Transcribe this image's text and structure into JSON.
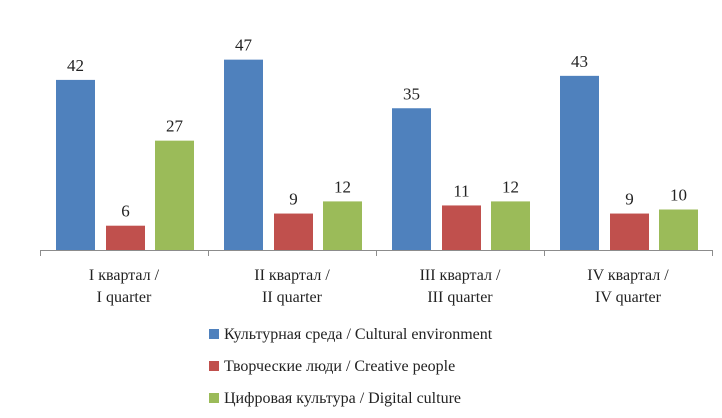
{
  "chart_data": {
    "type": "bar",
    "categories": [
      [
        "I квартал /",
        "I quarter"
      ],
      [
        "II квартал /",
        "II quarter"
      ],
      [
        "III квартал /",
        "III quarter"
      ],
      [
        "IV квартал /",
        "IV quarter"
      ]
    ],
    "series": [
      {
        "name": "Культурная среда / Cultural environment",
        "color": "#4F81BD",
        "values": [
          42,
          47,
          35,
          43
        ]
      },
      {
        "name": "Творческие люди / Creative people",
        "color": "#C0504D",
        "values": [
          6,
          9,
          11,
          9
        ]
      },
      {
        "name": "Цифровая культура / Digital culture",
        "color": "#9BBB59",
        "values": [
          27,
          12,
          12,
          10
        ]
      }
    ],
    "ylim": [
      0,
      50
    ],
    "grid": false,
    "legend_position": "bottom",
    "data_labels": true
  }
}
